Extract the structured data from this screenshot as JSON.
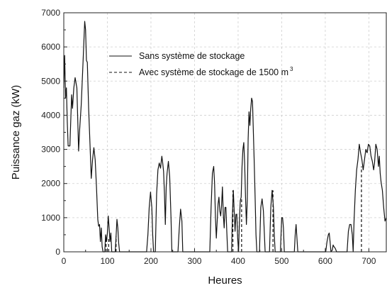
{
  "chart_data": {
    "type": "line",
    "title": "",
    "xlabel": "Heures",
    "ylabel": "Puissance gaz (kW)",
    "xlim": [
      0,
      740
    ],
    "ylim": [
      0,
      7000
    ],
    "xticks": [
      0,
      100,
      200,
      300,
      400,
      500,
      600,
      700
    ],
    "yticks": [
      0,
      1000,
      2000,
      3000,
      4000,
      5000,
      6000,
      7000
    ],
    "grid": true,
    "legend_position": "top-center",
    "legend": {
      "solid_label": "Sans système de stockage",
      "dashed_label": "Avec système de stockage de 1500 m",
      "dashed_label_sup": "3"
    },
    "series": [
      {
        "name": "Sans système de stockage",
        "style": "solid",
        "color": "#111111",
        "points": [
          [
            0,
            4800
          ],
          [
            2,
            5750
          ],
          [
            4,
            4500
          ],
          [
            6,
            4800
          ],
          [
            8,
            3800
          ],
          [
            10,
            3100
          ],
          [
            14,
            3100
          ],
          [
            18,
            4600
          ],
          [
            20,
            4200
          ],
          [
            23,
            4800
          ],
          [
            26,
            5100
          ],
          [
            30,
            4800
          ],
          [
            34,
            2950
          ],
          [
            36,
            3500
          ],
          [
            40,
            4300
          ],
          [
            44,
            5500
          ],
          [
            48,
            6750
          ],
          [
            50,
            6500
          ],
          [
            52,
            5600
          ],
          [
            54,
            5550
          ],
          [
            57,
            4200
          ],
          [
            60,
            3200
          ],
          [
            63,
            2150
          ],
          [
            66,
            2700
          ],
          [
            69,
            3050
          ],
          [
            72,
            2700
          ],
          [
            75,
            1900
          ],
          [
            78,
            950
          ],
          [
            80,
            750
          ],
          [
            82,
            800
          ],
          [
            84,
            300
          ],
          [
            86,
            700
          ],
          [
            88,
            150
          ],
          [
            90,
            0
          ],
          [
            94,
            0
          ],
          [
            96,
            500
          ],
          [
            98,
            300
          ],
          [
            100,
            550
          ],
          [
            102,
            1050
          ],
          [
            104,
            700
          ],
          [
            106,
            300
          ],
          [
            108,
            550
          ],
          [
            110,
            0
          ],
          [
            118,
            0
          ],
          [
            120,
            450
          ],
          [
            122,
            950
          ],
          [
            124,
            700
          ],
          [
            126,
            250
          ],
          [
            128,
            0
          ],
          [
            190,
            0
          ],
          [
            193,
            500
          ],
          [
            196,
            1300
          ],
          [
            199,
            1750
          ],
          [
            202,
            1300
          ],
          [
            204,
            500
          ],
          [
            206,
            0
          ],
          [
            210,
            0
          ],
          [
            213,
            1700
          ],
          [
            216,
            2400
          ],
          [
            219,
            2600
          ],
          [
            222,
            2450
          ],
          [
            225,
            2800
          ],
          [
            227,
            2600
          ],
          [
            229,
            2350
          ],
          [
            231,
            1700
          ],
          [
            233,
            800
          ],
          [
            235,
            1900
          ],
          [
            237,
            2300
          ],
          [
            240,
            2650
          ],
          [
            243,
            2200
          ],
          [
            246,
            1000
          ],
          [
            248,
            0
          ],
          [
            262,
            0
          ],
          [
            265,
            700
          ],
          [
            268,
            1250
          ],
          [
            271,
            900
          ],
          [
            273,
            0
          ],
          [
            335,
            0
          ],
          [
            338,
            1300
          ],
          [
            341,
            2300
          ],
          [
            344,
            2500
          ],
          [
            346,
            2000
          ],
          [
            348,
            1000
          ],
          [
            350,
            400
          ],
          [
            352,
            900
          ],
          [
            354,
            1400
          ],
          [
            356,
            1600
          ],
          [
            358,
            1200
          ],
          [
            360,
            1050
          ],
          [
            362,
            1350
          ],
          [
            364,
            1900
          ],
          [
            366,
            1100
          ],
          [
            368,
            700
          ],
          [
            370,
            1300
          ],
          [
            372,
            1300
          ],
          [
            374,
            600
          ],
          [
            376,
            0
          ],
          [
            385,
            0
          ],
          [
            387,
            1100
          ],
          [
            389,
            1800
          ],
          [
            391,
            1200
          ],
          [
            393,
            600
          ],
          [
            395,
            1100
          ],
          [
            397,
            1100
          ],
          [
            399,
            400
          ],
          [
            401,
            0
          ],
          [
            403,
            900
          ],
          [
            405,
            1500
          ],
          [
            407,
            1600
          ],
          [
            409,
            2500
          ],
          [
            411,
            3000
          ],
          [
            413,
            3200
          ],
          [
            415,
            2600
          ],
          [
            417,
            1600
          ],
          [
            419,
            800
          ],
          [
            421,
            1500
          ],
          [
            423,
            3300
          ],
          [
            425,
            4100
          ],
          [
            427,
            3700
          ],
          [
            429,
            4200
          ],
          [
            431,
            4500
          ],
          [
            433,
            4400
          ],
          [
            435,
            3500
          ],
          [
            437,
            2600
          ],
          [
            439,
            1600
          ],
          [
            441,
            500
          ],
          [
            443,
            0
          ],
          [
            449,
            0
          ],
          [
            452,
            1300
          ],
          [
            455,
            1550
          ],
          [
            458,
            1200
          ],
          [
            460,
            600
          ],
          [
            462,
            0
          ],
          [
            472,
            0
          ],
          [
            475,
            1300
          ],
          [
            478,
            1800
          ],
          [
            481,
            1300
          ],
          [
            483,
            500
          ],
          [
            485,
            0
          ],
          [
            497,
            0
          ],
          [
            500,
            1000
          ],
          [
            502,
            1000
          ],
          [
            504,
            700
          ],
          [
            506,
            0
          ],
          [
            529,
            0
          ],
          [
            531,
            500
          ],
          [
            533,
            800
          ],
          [
            535,
            400
          ],
          [
            537,
            0
          ],
          [
            601,
            0
          ],
          [
            604,
            300
          ],
          [
            607,
            500
          ],
          [
            609,
            550
          ],
          [
            611,
            300
          ],
          [
            613,
            0
          ],
          [
            616,
            50
          ],
          [
            618,
            200
          ],
          [
            620,
            150
          ],
          [
            623,
            100
          ],
          [
            626,
            0
          ],
          [
            650,
            0
          ],
          [
            653,
            600
          ],
          [
            656,
            800
          ],
          [
            659,
            800
          ],
          [
            662,
            500
          ],
          [
            664,
            0
          ],
          [
            666,
            900
          ],
          [
            669,
            1800
          ],
          [
            672,
            2400
          ],
          [
            675,
            2700
          ],
          [
            678,
            3150
          ],
          [
            681,
            2900
          ],
          [
            684,
            2700
          ],
          [
            687,
            2400
          ],
          [
            690,
            2700
          ],
          [
            693,
            3000
          ],
          [
            696,
            2900
          ],
          [
            699,
            3150
          ],
          [
            702,
            3100
          ],
          [
            705,
            2800
          ],
          [
            708,
            2650
          ],
          [
            711,
            2400
          ],
          [
            713,
            2600
          ],
          [
            716,
            3150
          ],
          [
            719,
            3000
          ],
          [
            722,
            2500
          ],
          [
            724,
            2800
          ],
          [
            726,
            2300
          ],
          [
            728,
            2050
          ],
          [
            731,
            1800
          ],
          [
            734,
            1300
          ],
          [
            737,
            900
          ],
          [
            740,
            1000
          ]
        ]
      },
      {
        "name": "Avec système de stockage de 1500 m³",
        "style": "dashed",
        "color": "#111111",
        "points": [
          [
            97,
            0
          ],
          [
            97,
            400
          ],
          [
            null,
            null
          ],
          [
            103,
            0
          ],
          [
            103,
            400
          ],
          [
            null,
            null
          ],
          [
            120,
            0
          ],
          [
            120,
            450
          ],
          [
            null,
            null
          ],
          [
            388,
            0
          ],
          [
            388,
            1800
          ],
          [
            null,
            null
          ],
          [
            408,
            0
          ],
          [
            408,
            1600
          ],
          [
            null,
            null
          ],
          [
            480,
            0
          ],
          [
            480,
            1800
          ],
          [
            null,
            null
          ],
          [
            683,
            0
          ],
          [
            683,
            2500
          ]
        ]
      }
    ]
  }
}
